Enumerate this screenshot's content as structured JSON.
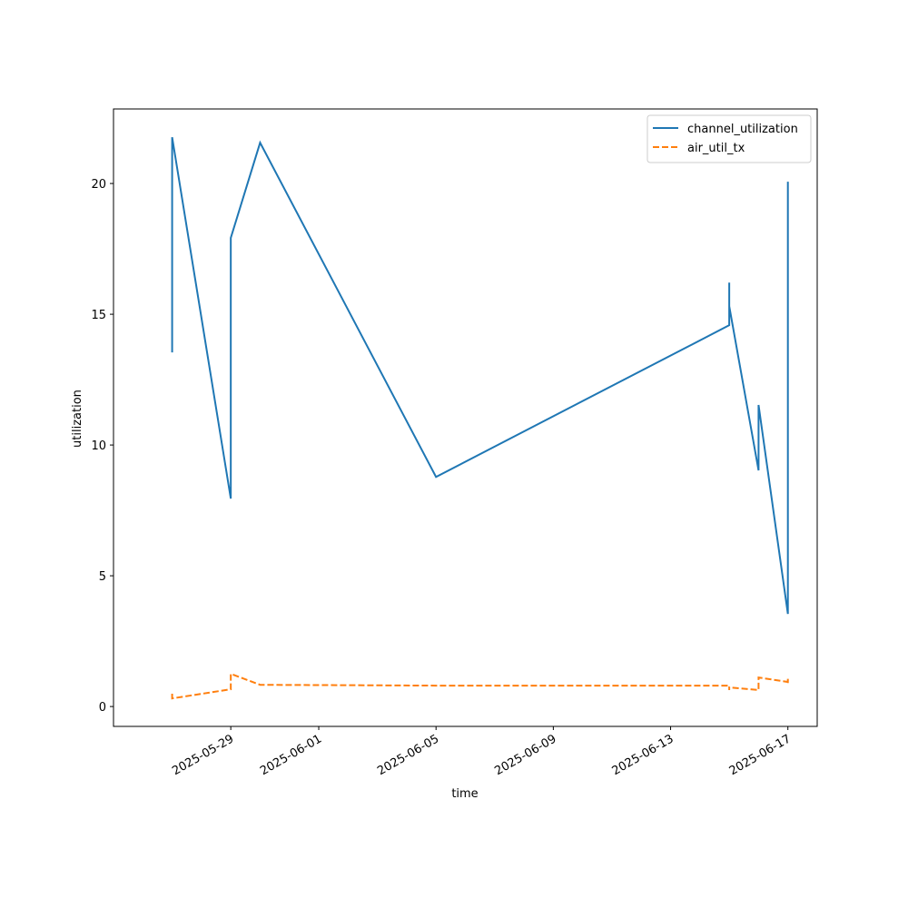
{
  "chart_data": {
    "type": "line",
    "xlabel": "time",
    "ylabel": "utilization",
    "x": [
      "2025-05-27",
      "2025-05-27",
      "2025-05-29",
      "2025-05-29",
      "2025-05-30",
      "2025-06-05",
      "2025-06-15",
      "2025-06-15",
      "2025-06-15",
      "2025-06-16",
      "2025-06-16",
      "2025-06-17",
      "2025-06-17",
      "2025-06-17"
    ],
    "series": [
      {
        "name": "channel_utilization",
        "color": "#1f77b4",
        "dash": "solid",
        "values": [
          13.54,
          21.77,
          7.95,
          17.92,
          21.56,
          8.78,
          14.58,
          16.21,
          15.31,
          9.03,
          11.53,
          3.54,
          20.07,
          14.9
        ]
      },
      {
        "name": "air_util_tx",
        "color": "#ff7f0e",
        "dash": "dashed",
        "values": [
          0.49,
          0.31,
          0.66,
          1.25,
          0.83,
          0.8,
          0.8,
          0.63,
          0.73,
          0.63,
          1.11,
          0.94,
          1.08,
          0.9
        ]
      }
    ],
    "xlim": [
      "2025-05-25",
      "2025-06-18"
    ],
    "xticks": [
      "2025-05-29",
      "2025-06-01",
      "2025-06-05",
      "2025-06-09",
      "2025-06-13",
      "2025-06-17"
    ],
    "ylim": [
      -0.76,
      22.85
    ],
    "yticks": [
      0,
      5,
      10,
      15,
      20
    ],
    "grid": false,
    "legend": "upper right"
  }
}
